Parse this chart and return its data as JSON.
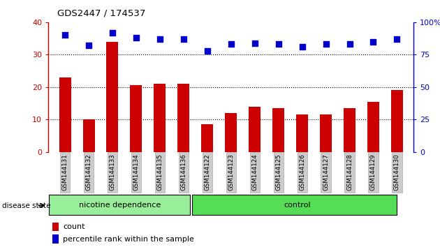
{
  "title": "GDS2447 / 174537",
  "categories": [
    "GSM144131",
    "GSM144132",
    "GSM144133",
    "GSM144134",
    "GSM144135",
    "GSM144136",
    "GSM144122",
    "GSM144123",
    "GSM144124",
    "GSM144125",
    "GSM144126",
    "GSM144127",
    "GSM144128",
    "GSM144129",
    "GSM144130"
  ],
  "bar_values": [
    23,
    10,
    34,
    20.5,
    21,
    21,
    8.5,
    12,
    14,
    13.5,
    11.5,
    11.5,
    13.5,
    15.5,
    19
  ],
  "dot_values_pct": [
    90,
    82,
    92,
    88,
    87,
    87,
    78,
    83,
    84,
    83,
    81,
    83,
    83,
    85,
    87
  ],
  "bar_color": "#cc0000",
  "dot_color": "#0000cc",
  "ylim_left": [
    0,
    40
  ],
  "ylim_right": [
    0,
    100
  ],
  "yticks_left": [
    0,
    10,
    20,
    30,
    40
  ],
  "yticks_right": [
    0,
    25,
    50,
    75,
    100
  ],
  "ytick_labels_right": [
    "0",
    "25",
    "50",
    "75",
    "100%"
  ],
  "grid_lines": [
    10,
    20,
    30
  ],
  "group1_label": "nicotine dependence",
  "group2_label": "control",
  "group1_color": "#99ee99",
  "group2_color": "#55dd55",
  "group1_count": 6,
  "group2_count": 9,
  "disease_state_label": "disease state",
  "legend_count_label": "count",
  "legend_pct_label": "percentile rank within the sample",
  "bg_color": "#ffffff",
  "axis_color_left": "#cc0000",
  "axis_color_right": "#0000cc",
  "tick_label_bg": "#cccccc",
  "tick_label_edge": "#aaaaaa"
}
